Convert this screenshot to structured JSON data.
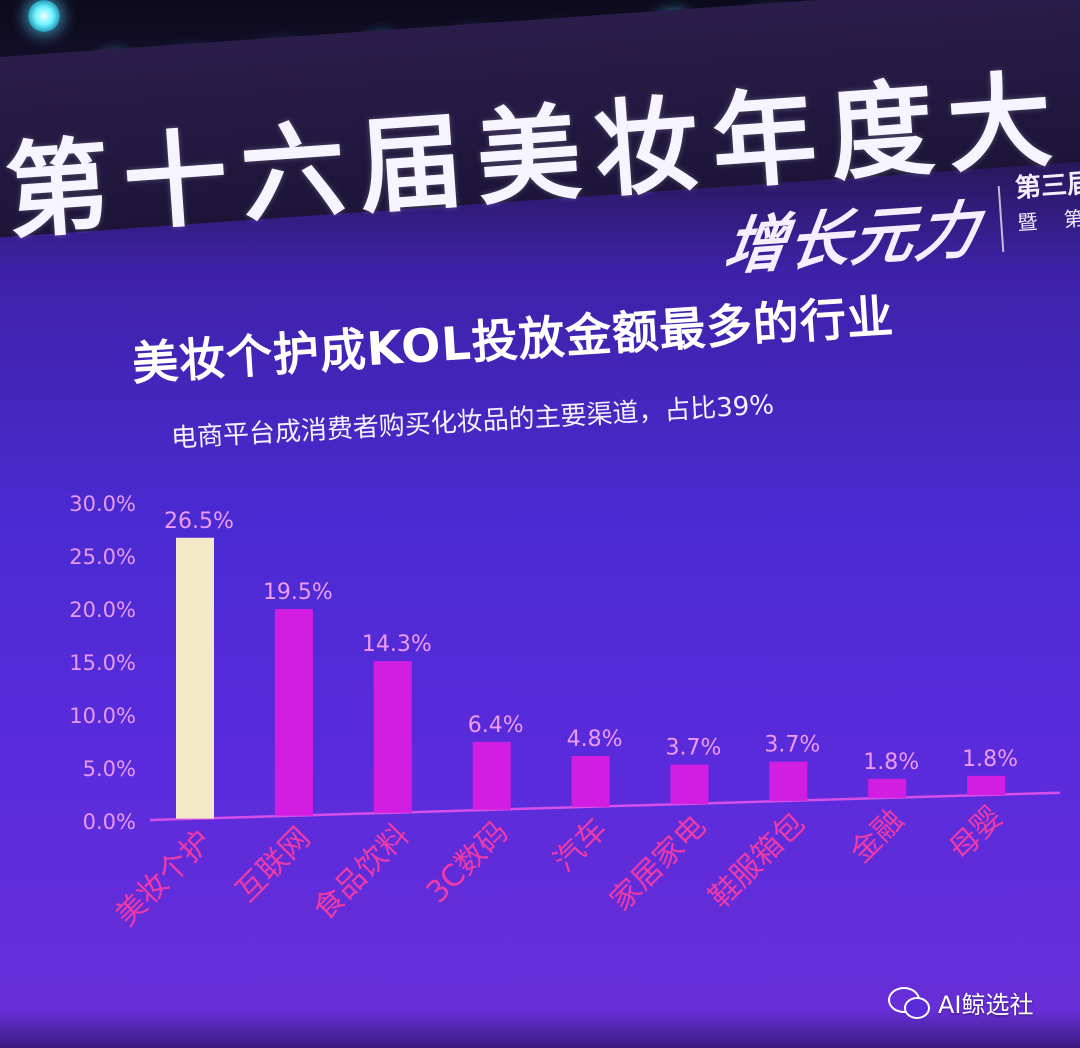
{
  "stage": {
    "headline": "第十六届美妆年度大",
    "calligraphy": "增长元力",
    "side_tag_line1": "第三届",
    "side_tag_line2": "暨 第"
  },
  "colors": {
    "highlight_bar": "#f3e9c8",
    "bar": "#d21ee0",
    "axis": "#d64fe8",
    "tick_label": "#e79af0",
    "data_label": "#ef9bf4",
    "category_label": "#ee3aa8",
    "title": "#ffffff"
  },
  "chart_data": {
    "type": "bar",
    "title": "美妆个护成KOL投放金额最多的行业",
    "subtitle": "电商平台成消费者购买化妆品的主要渠道，占比39%",
    "categories": [
      "美妆个护",
      "互联网",
      "食品饮料",
      "3C数码",
      "汽车",
      "家居家电",
      "鞋服箱包",
      "金融",
      "母婴"
    ],
    "values": [
      26.5,
      19.5,
      14.3,
      6.4,
      4.8,
      3.7,
      3.7,
      1.8,
      1.8
    ],
    "data_labels": [
      "26.5%",
      "19.5%",
      "14.3%",
      "6.4%",
      "4.8%",
      "3.7%",
      "3.7%",
      "1.8%",
      "1.8%"
    ],
    "highlight_index": 0,
    "ylim": [
      0,
      30
    ],
    "yticks": [
      0,
      5,
      10,
      15,
      20,
      25,
      30
    ],
    "ytick_labels": [
      "0.0%",
      "5.0%",
      "10.0%",
      "15.0%",
      "20.0%",
      "25.0%",
      "30.0%"
    ],
    "grid": false,
    "legend": "none"
  },
  "watermark": {
    "icon": "wechat-icon",
    "text": "AI鲸选社"
  }
}
